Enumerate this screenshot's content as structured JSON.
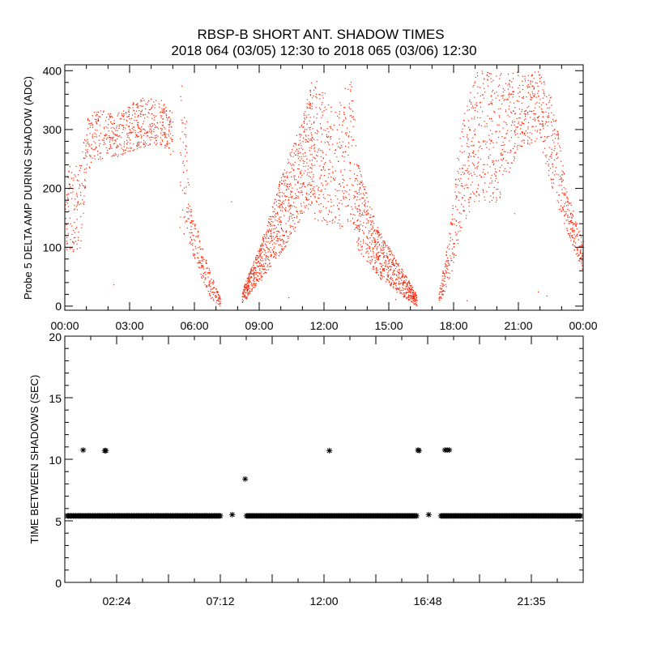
{
  "title": "RBSP-B SHORT ANT. SHADOW TIMES",
  "subtitle": "2018 064 (03/05) 12:30 to 2018 065 (03/06) 12:30",
  "colors": {
    "top_points": "#ff2000",
    "bottom_points": "#000000",
    "axes": "#000000"
  },
  "chart_data": [
    {
      "type": "scatter",
      "ylabel": "Probe 5 DELTA AMP DURING SHADOW (ADC)",
      "xlim_hours": [
        0,
        24
      ],
      "ylim": [
        -7,
        410
      ],
      "xticks": [
        "00:00",
        "03:00",
        "06:00",
        "09:00",
        "12:00",
        "15:00",
        "18:00",
        "21:00",
        "00:00"
      ],
      "yticks": [
        "0",
        "100",
        "200",
        "300",
        "400"
      ],
      "point_color": "#ff2000",
      "clusters": [
        {
          "hours_lo_hi": [
            [
              0.0,
              90,
              250
            ],
            [
              0.4,
              90,
              230
            ],
            [
              0.7,
              95,
              260
            ],
            [
              1.0,
              230,
              320
            ],
            [
              1.5,
              250,
              335
            ],
            [
              2.5,
              255,
              330
            ],
            [
              3.5,
              270,
              355
            ],
            [
              4.5,
              275,
              350
            ],
            [
              5.0,
              250,
              330
            ]
          ],
          "density": 700
        },
        {
          "hours_lo_hi": [
            [
              5.3,
              130,
              400
            ],
            [
              5.6,
              120,
              330
            ],
            [
              5.8,
              100,
              170
            ],
            [
              6.3,
              50,
              110
            ],
            [
              6.8,
              10,
              50
            ],
            [
              7.2,
              0,
              15
            ]
          ],
          "density": 260
        },
        {
          "hours_lo_hi": [
            [
              8.2,
              5,
              30
            ],
            [
              9.0,
              40,
              100
            ],
            [
              10.0,
              90,
              220
            ],
            [
              11.0,
              150,
              320
            ],
            [
              11.5,
              180,
              400
            ]
          ],
          "density": 900
        },
        {
          "hours_lo_hi": [
            [
              11.5,
              150,
              400
            ],
            [
              12.5,
              130,
              330
            ],
            [
              13.3,
              140,
              400
            ],
            [
              13.5,
              100,
              250
            ]
          ],
          "density": 350
        },
        {
          "hours_lo_hi": [
            [
              13.5,
              100,
              250
            ],
            [
              14.5,
              50,
              130
            ],
            [
              15.5,
              20,
              70
            ],
            [
              16.3,
              0,
              20
            ]
          ],
          "density": 700
        },
        {
          "hours_lo_hi": [
            [
              17.3,
              5,
              20
            ],
            [
              17.8,
              40,
              130
            ],
            [
              18.3,
              120,
              300
            ],
            [
              19.0,
              180,
              400
            ],
            [
              20.0,
              170,
              400
            ],
            [
              21.0,
              270,
              400
            ],
            [
              22.0,
              280,
              400
            ],
            [
              22.6,
              190,
              350
            ],
            [
              23.2,
              130,
              200
            ],
            [
              24.0,
              55,
              110
            ]
          ],
          "density": 1100
        }
      ],
      "outliers": [
        [
          2.25,
          37
        ],
        [
          7.7,
          178
        ],
        [
          11.85,
          280
        ],
        [
          10.35,
          15
        ],
        [
          15.3,
          12
        ],
        [
          20.8,
          158
        ],
        [
          22.3,
          18
        ],
        [
          18.6,
          10
        ],
        [
          21.9,
          25
        ]
      ]
    },
    {
      "type": "scatter",
      "ylabel": "TIME BETWEEN SHADOWS (SEC)",
      "xlim_hours": [
        0,
        24
      ],
      "ylim": [
        0,
        20
      ],
      "xticks": [
        "02:24",
        "07:12",
        "12:00",
        "16:48",
        "21:35"
      ],
      "xtick_hours": [
        2.4,
        7.2,
        12.0,
        16.8,
        21.6
      ],
      "yticks": [
        "0",
        "5",
        "10",
        "15",
        "20"
      ],
      "point_color": "#000000",
      "baseline_value": 5.4,
      "baseline_runs_hours": [
        [
          0.0,
          7.3
        ],
        [
          8.3,
          16.4
        ],
        [
          17.3,
          24.0
        ]
      ],
      "points": [
        [
          0.85,
          10.75
        ],
        [
          1.85,
          10.7
        ],
        [
          1.9,
          10.7
        ],
        [
          7.75,
          5.5
        ],
        [
          8.35,
          8.4
        ],
        [
          12.25,
          10.7
        ],
        [
          16.35,
          10.75
        ],
        [
          16.4,
          10.7
        ],
        [
          16.85,
          5.5
        ],
        [
          17.6,
          10.75
        ],
        [
          17.7,
          10.75
        ],
        [
          17.8,
          10.75
        ]
      ]
    }
  ]
}
